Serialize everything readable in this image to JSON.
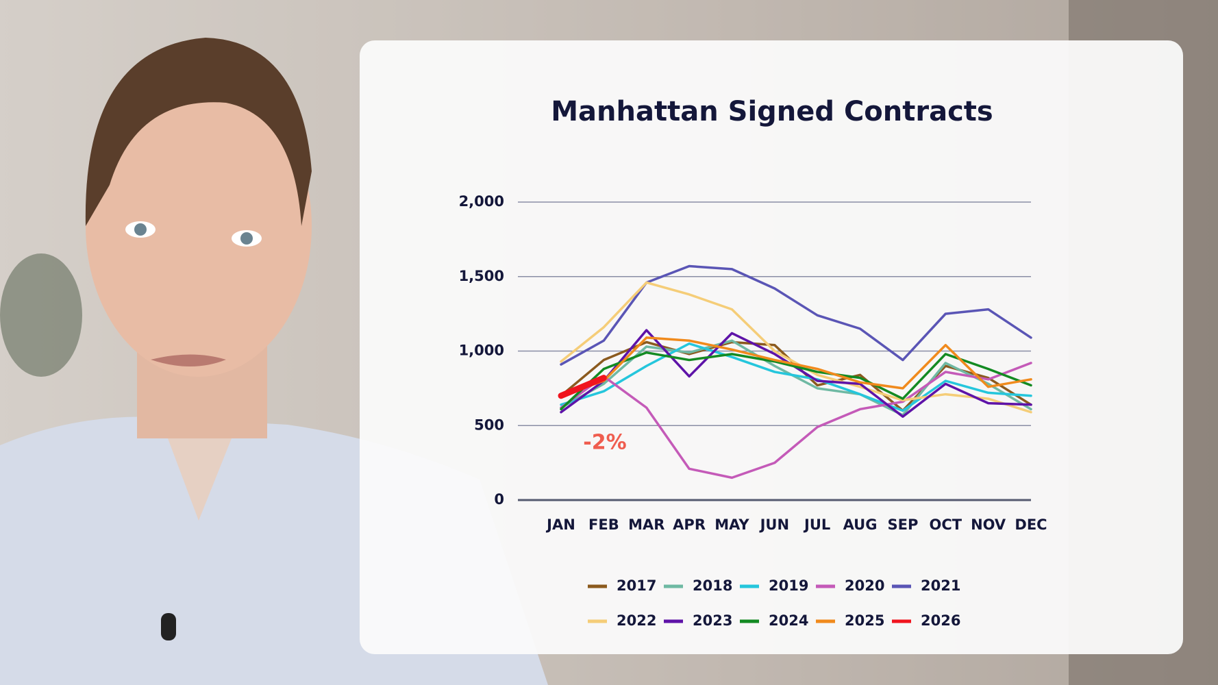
{
  "chart_data": {
    "type": "line",
    "title": "Manhattan Signed Contracts",
    "categories": [
      "JAN",
      "FEB",
      "MAR",
      "APR",
      "MAY",
      "JUN",
      "JUL",
      "AUG",
      "SEP",
      "OCT",
      "NOV",
      "DEC"
    ],
    "ylim": [
      0,
      2000
    ],
    "yticks": [
      0,
      500,
      {
        "value": 1000,
        "label": "1,000"
      },
      {
        "value": 1500,
        "label": "1,500"
      },
      {
        "value": 2000,
        "label": "2,000"
      }
    ],
    "grid": true,
    "annotation": "-2%",
    "series": [
      {
        "name": "2017",
        "color": "#8b5a1e",
        "values": [
          700,
          940,
          1060,
          980,
          1060,
          1040,
          770,
          840,
          600,
          900,
          820,
          640
        ]
      },
      {
        "name": "2018",
        "color": "#6fb9a3",
        "values": [
          620,
          780,
          1030,
          990,
          1070,
          900,
          750,
          710,
          570,
          920,
          780,
          610
        ]
      },
      {
        "name": "2019",
        "color": "#25c6dc",
        "values": [
          640,
          730,
          900,
          1050,
          960,
          860,
          810,
          710,
          600,
          800,
          720,
          700
        ]
      },
      {
        "name": "2020",
        "color": "#c45ab8",
        "values": [
          620,
          830,
          620,
          210,
          150,
          250,
          490,
          610,
          660,
          860,
          810,
          920
        ]
      },
      {
        "name": "2021",
        "color": "#5a55b5",
        "values": [
          910,
          1070,
          1460,
          1570,
          1550,
          1420,
          1240,
          1150,
          940,
          1250,
          1280,
          1090
        ]
      },
      {
        "name": "2022",
        "color": "#f5cd78",
        "values": [
          930,
          1160,
          1460,
          1380,
          1280,
          1000,
          840,
          760,
          670,
          710,
          680,
          590
        ]
      },
      {
        "name": "2023",
        "color": "#5e13a8",
        "values": [
          590,
          800,
          1140,
          830,
          1120,
          980,
          800,
          780,
          560,
          780,
          650,
          640
        ]
      },
      {
        "name": "2024",
        "color": "#138a22",
        "values": [
          610,
          880,
          990,
          940,
          980,
          930,
          860,
          820,
          680,
          980,
          880,
          770
        ]
      },
      {
        "name": "2025",
        "color": "#f08a1c",
        "values": [
          700,
          800,
          1090,
          1070,
          1010,
          940,
          880,
          790,
          750,
          1040,
          760,
          810
        ]
      },
      {
        "name": "2026",
        "color": "#f0141e",
        "values": [
          700,
          820,
          null,
          null,
          null,
          null,
          null,
          null,
          null,
          null,
          null,
          null
        ]
      }
    ]
  }
}
